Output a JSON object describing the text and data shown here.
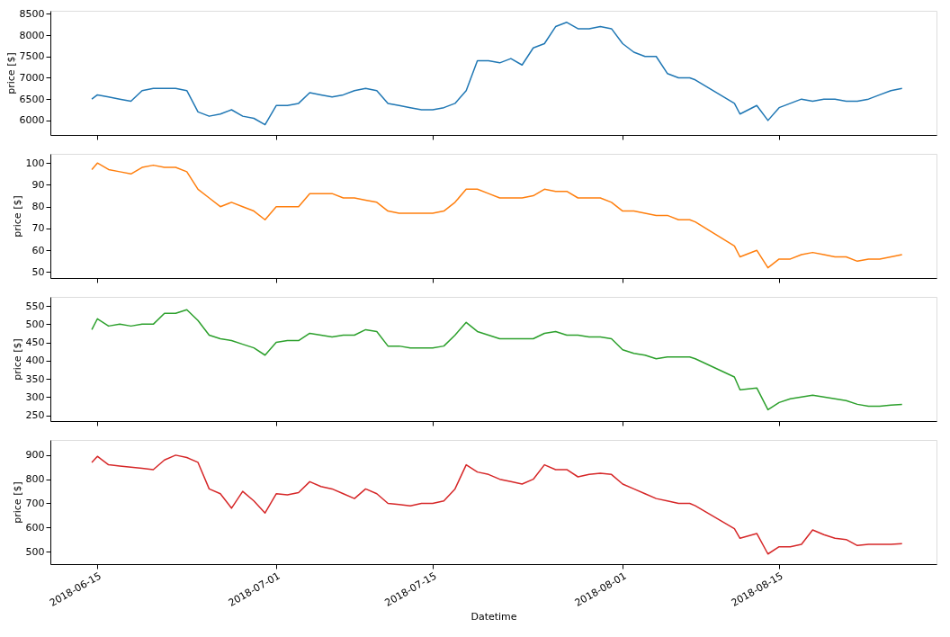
{
  "chart_data": [
    {
      "type": "line",
      "ylabel": "price [$]",
      "xlim": [
        "2018-06-10T19:00",
        "2018-08-29T02:00"
      ],
      "ylim": [
        5660,
        8570
      ],
      "yticks": [
        6000,
        6500,
        7000,
        7500,
        8000,
        8500
      ],
      "xticks": [
        {
          "value": "2018-06-15",
          "label": null
        },
        {
          "value": "2018-07-01",
          "label": null
        },
        {
          "value": "2018-07-15",
          "label": null
        },
        {
          "value": "2018-08-01",
          "label": null
        },
        {
          "value": "2018-08-15",
          "label": null
        }
      ],
      "tick_labels": "y",
      "grid": false,
      "x": [
        "2018-06-14T12:00",
        "2018-06-15",
        "2018-06-16",
        "2018-06-17",
        "2018-06-18",
        "2018-06-19",
        "2018-06-20",
        "2018-06-21",
        "2018-06-22",
        "2018-06-23",
        "2018-06-24",
        "2018-06-25",
        "2018-06-26",
        "2018-06-27",
        "2018-06-28",
        "2018-06-29",
        "2018-06-30",
        "2018-07-01",
        "2018-07-02",
        "2018-07-03",
        "2018-07-04",
        "2018-07-05",
        "2018-07-06",
        "2018-07-07",
        "2018-07-08",
        "2018-07-09",
        "2018-07-10",
        "2018-07-11",
        "2018-07-12",
        "2018-07-13",
        "2018-07-14",
        "2018-07-15",
        "2018-07-16",
        "2018-07-17",
        "2018-07-18",
        "2018-07-19",
        "2018-07-20",
        "2018-07-21",
        "2018-07-22",
        "2018-07-23",
        "2018-07-24",
        "2018-07-25",
        "2018-07-26",
        "2018-07-27",
        "2018-07-28",
        "2018-07-29",
        "2018-07-30",
        "2018-07-31",
        "2018-08-01",
        "2018-08-02",
        "2018-08-03",
        "2018-08-04",
        "2018-08-05",
        "2018-08-06",
        "2018-08-07",
        "2018-08-07T12:00",
        "2018-08-11",
        "2018-08-11T12:00",
        "2018-08-13",
        "2018-08-14",
        "2018-08-15",
        "2018-08-16",
        "2018-08-17",
        "2018-08-18",
        "2018-08-19",
        "2018-08-20",
        "2018-08-21",
        "2018-08-22",
        "2018-08-23",
        "2018-08-24",
        "2018-08-25",
        "2018-08-26"
      ],
      "series": [
        {
          "color": "#1f77b4",
          "values": [
            6500,
            6600,
            6550,
            6500,
            6450,
            6700,
            6750,
            6750,
            6750,
            6700,
            6200,
            6100,
            6150,
            6250,
            6100,
            6050,
            5900,
            6350,
            6350,
            6400,
            6650,
            6600,
            6550,
            6600,
            6700,
            6750,
            6700,
            6400,
            6350,
            6300,
            6250,
            6250,
            6300,
            6400,
            6700,
            7400,
            7400,
            7350,
            7450,
            7300,
            7700,
            7800,
            8200,
            8300,
            8150,
            8150,
            8200,
            8150,
            7800,
            7600,
            7500,
            7500,
            7100,
            7000,
            7000,
            6950,
            6400,
            6150,
            6350,
            6000,
            6300,
            6400,
            6500,
            6450,
            6500,
            6500,
            6450,
            6450,
            6500,
            6600,
            6700,
            6750
          ]
        }
      ]
    },
    {
      "type": "line",
      "ylabel": "price [$]",
      "xlim": [
        "2018-06-10T19:00",
        "2018-08-29T02:00"
      ],
      "ylim": [
        47.3,
        104.2
      ],
      "yticks": [
        50,
        60,
        70,
        80,
        90,
        100
      ],
      "xticks": [
        {
          "value": "2018-06-15",
          "label": null
        },
        {
          "value": "2018-07-01",
          "label": null
        },
        {
          "value": "2018-07-15",
          "label": null
        },
        {
          "value": "2018-08-01",
          "label": null
        },
        {
          "value": "2018-08-15",
          "label": null
        }
      ],
      "tick_labels": "y",
      "grid": false,
      "x": [
        "2018-06-14T12:00",
        "2018-06-15",
        "2018-06-16",
        "2018-06-17",
        "2018-06-18",
        "2018-06-19",
        "2018-06-20",
        "2018-06-21",
        "2018-06-22",
        "2018-06-23",
        "2018-06-24",
        "2018-06-25",
        "2018-06-26",
        "2018-06-27",
        "2018-06-28",
        "2018-06-29",
        "2018-06-30",
        "2018-07-01",
        "2018-07-02",
        "2018-07-03",
        "2018-07-04",
        "2018-07-05",
        "2018-07-06",
        "2018-07-07",
        "2018-07-08",
        "2018-07-09",
        "2018-07-10",
        "2018-07-11",
        "2018-07-12",
        "2018-07-13",
        "2018-07-14",
        "2018-07-15",
        "2018-07-16",
        "2018-07-17",
        "2018-07-18",
        "2018-07-19",
        "2018-07-20",
        "2018-07-21",
        "2018-07-22",
        "2018-07-23",
        "2018-07-24",
        "2018-07-25",
        "2018-07-26",
        "2018-07-27",
        "2018-07-28",
        "2018-07-29",
        "2018-07-30",
        "2018-07-31",
        "2018-08-01",
        "2018-08-02",
        "2018-08-03",
        "2018-08-04",
        "2018-08-05",
        "2018-08-06",
        "2018-08-07",
        "2018-08-07T12:00",
        "2018-08-11",
        "2018-08-11T12:00",
        "2018-08-13",
        "2018-08-14",
        "2018-08-15",
        "2018-08-16",
        "2018-08-17",
        "2018-08-18",
        "2018-08-19",
        "2018-08-20",
        "2018-08-21",
        "2018-08-22",
        "2018-08-23",
        "2018-08-24",
        "2018-08-25",
        "2018-08-26"
      ],
      "series": [
        {
          "color": "#ff7f0e",
          "values": [
            97,
            100,
            97,
            96,
            95,
            98,
            99,
            98,
            98,
            96,
            88,
            84,
            80,
            82,
            80,
            78,
            74,
            80,
            80,
            80,
            86,
            86,
            86,
            84,
            84,
            83,
            82,
            78,
            77,
            77,
            77,
            77,
            78,
            82,
            88,
            88,
            86,
            84,
            84,
            84,
            85,
            88,
            87,
            87,
            84,
            84,
            84,
            82,
            78,
            78,
            77,
            76,
            76,
            74,
            74,
            73,
            62,
            57,
            60,
            52,
            56,
            56,
            58,
            59,
            58,
            57,
            57,
            55,
            56,
            56,
            57,
            58
          ]
        }
      ]
    },
    {
      "type": "line",
      "ylabel": "price [$]",
      "xlim": [
        "2018-06-10T19:00",
        "2018-08-29T02:00"
      ],
      "ylim": [
        234,
        575
      ],
      "yticks": [
        250,
        300,
        350,
        400,
        450,
        500,
        550
      ],
      "xticks": [
        {
          "value": "2018-06-15",
          "label": null
        },
        {
          "value": "2018-07-01",
          "label": null
        },
        {
          "value": "2018-07-15",
          "label": null
        },
        {
          "value": "2018-08-01",
          "label": null
        },
        {
          "value": "2018-08-15",
          "label": null
        }
      ],
      "tick_labels": "y",
      "grid": false,
      "x": [
        "2018-06-14T12:00",
        "2018-06-15",
        "2018-06-16",
        "2018-06-17",
        "2018-06-18",
        "2018-06-19",
        "2018-06-20",
        "2018-06-21",
        "2018-06-22",
        "2018-06-23",
        "2018-06-24",
        "2018-06-25",
        "2018-06-26",
        "2018-06-27",
        "2018-06-28",
        "2018-06-29",
        "2018-06-30",
        "2018-07-01",
        "2018-07-02",
        "2018-07-03",
        "2018-07-04",
        "2018-07-05",
        "2018-07-06",
        "2018-07-07",
        "2018-07-08",
        "2018-07-09",
        "2018-07-10",
        "2018-07-11",
        "2018-07-12",
        "2018-07-13",
        "2018-07-14",
        "2018-07-15",
        "2018-07-16",
        "2018-07-17",
        "2018-07-18",
        "2018-07-19",
        "2018-07-20",
        "2018-07-21",
        "2018-07-22",
        "2018-07-23",
        "2018-07-24",
        "2018-07-25",
        "2018-07-26",
        "2018-07-27",
        "2018-07-28",
        "2018-07-29",
        "2018-07-30",
        "2018-07-31",
        "2018-08-01",
        "2018-08-02",
        "2018-08-03",
        "2018-08-04",
        "2018-08-05",
        "2018-08-06",
        "2018-08-07",
        "2018-08-07T12:00",
        "2018-08-11",
        "2018-08-11T12:00",
        "2018-08-13",
        "2018-08-14",
        "2018-08-15",
        "2018-08-16",
        "2018-08-17",
        "2018-08-18",
        "2018-08-19",
        "2018-08-20",
        "2018-08-21",
        "2018-08-22",
        "2018-08-23",
        "2018-08-24",
        "2018-08-25",
        "2018-08-26"
      ],
      "series": [
        {
          "color": "#2ca02c",
          "values": [
            485,
            515,
            495,
            500,
            495,
            500,
            500,
            530,
            530,
            540,
            510,
            470,
            460,
            455,
            445,
            435,
            415,
            450,
            455,
            455,
            475,
            470,
            465,
            470,
            470,
            485,
            480,
            440,
            440,
            435,
            435,
            435,
            440,
            470,
            505,
            480,
            470,
            460,
            460,
            460,
            460,
            475,
            480,
            470,
            470,
            465,
            465,
            460,
            430,
            420,
            415,
            405,
            410,
            410,
            410,
            405,
            355,
            320,
            325,
            265,
            285,
            295,
            300,
            305,
            300,
            295,
            290,
            280,
            275,
            275,
            278,
            280
          ]
        }
      ]
    },
    {
      "type": "line",
      "ylabel": "price [$]",
      "xlabel": "Datetime",
      "xlim": [
        "2018-06-10T19:00",
        "2018-08-29T02:00"
      ],
      "ylim": [
        448,
        963
      ],
      "yticks": [
        500,
        600,
        700,
        800,
        900
      ],
      "xticks": [
        {
          "value": "2018-06-15",
          "label": "2018-06-15"
        },
        {
          "value": "2018-07-01",
          "label": "2018-07-01"
        },
        {
          "value": "2018-07-15",
          "label": "2018-07-15"
        },
        {
          "value": "2018-08-01",
          "label": "2018-08-01"
        },
        {
          "value": "2018-08-15",
          "label": "2018-08-15"
        }
      ],
      "grid": false,
      "x": [
        "2018-06-14T12:00",
        "2018-06-15",
        "2018-06-16",
        "2018-06-17",
        "2018-06-18",
        "2018-06-19",
        "2018-06-20",
        "2018-06-21",
        "2018-06-22",
        "2018-06-23",
        "2018-06-24",
        "2018-06-25",
        "2018-06-26",
        "2018-06-27",
        "2018-06-28",
        "2018-06-29",
        "2018-06-30",
        "2018-07-01",
        "2018-07-02",
        "2018-07-03",
        "2018-07-04",
        "2018-07-05",
        "2018-07-06",
        "2018-07-07",
        "2018-07-08",
        "2018-07-09",
        "2018-07-10",
        "2018-07-11",
        "2018-07-12",
        "2018-07-13",
        "2018-07-14",
        "2018-07-15",
        "2018-07-16",
        "2018-07-17",
        "2018-07-18",
        "2018-07-19",
        "2018-07-20",
        "2018-07-21",
        "2018-07-22",
        "2018-07-23",
        "2018-07-24",
        "2018-07-25",
        "2018-07-26",
        "2018-07-27",
        "2018-07-28",
        "2018-07-29",
        "2018-07-30",
        "2018-07-31",
        "2018-08-01",
        "2018-08-02",
        "2018-08-03",
        "2018-08-04",
        "2018-08-05",
        "2018-08-06",
        "2018-08-07",
        "2018-08-07T12:00",
        "2018-08-11",
        "2018-08-11T12:00",
        "2018-08-13",
        "2018-08-14",
        "2018-08-15",
        "2018-08-16",
        "2018-08-17",
        "2018-08-18",
        "2018-08-19",
        "2018-08-20",
        "2018-08-21",
        "2018-08-22",
        "2018-08-23",
        "2018-08-24",
        "2018-08-25",
        "2018-08-26"
      ],
      "series": [
        {
          "color": "#d62728",
          "values": [
            870,
            895,
            860,
            855,
            850,
            845,
            840,
            880,
            900,
            890,
            870,
            760,
            740,
            680,
            750,
            710,
            660,
            740,
            735,
            745,
            790,
            770,
            760,
            740,
            720,
            760,
            740,
            700,
            695,
            690,
            700,
            700,
            710,
            760,
            860,
            830,
            820,
            800,
            790,
            780,
            800,
            860,
            840,
            840,
            810,
            820,
            825,
            820,
            780,
            760,
            740,
            720,
            710,
            700,
            700,
            690,
            595,
            555,
            575,
            490,
            520,
            520,
            530,
            590,
            570,
            555,
            550,
            525,
            530,
            530,
            530,
            533
          ]
        }
      ]
    }
  ]
}
